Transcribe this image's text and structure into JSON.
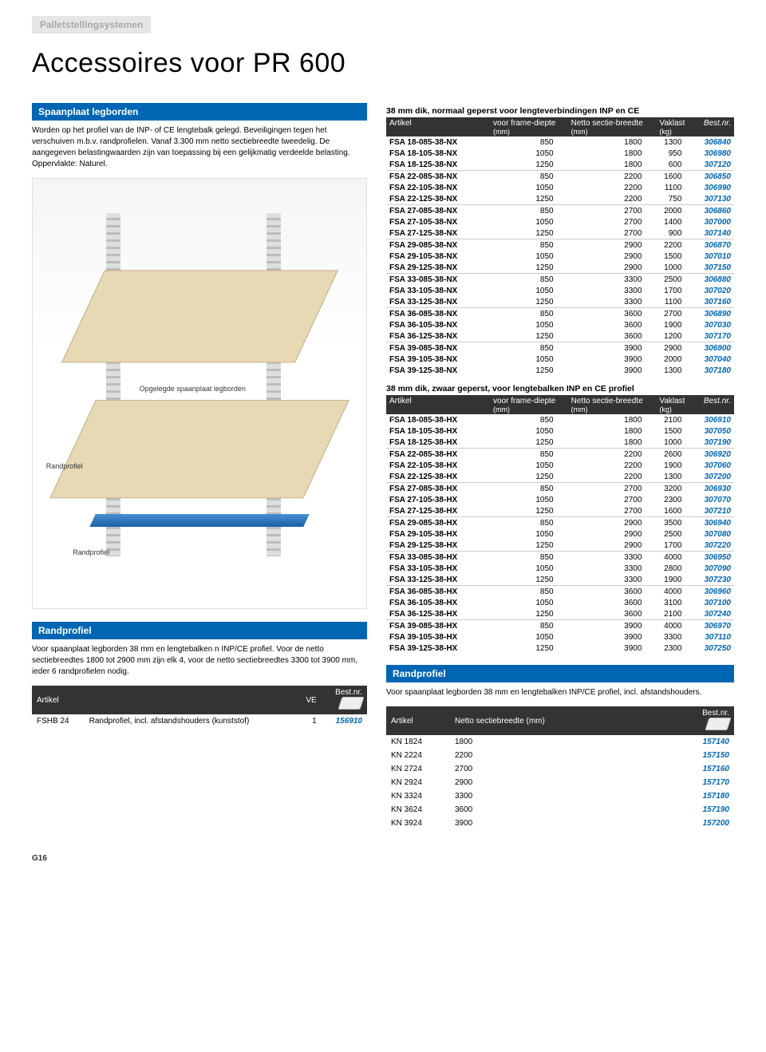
{
  "header": {
    "category": "Palletstellingsystemen",
    "title": "Accessoires voor PR 600"
  },
  "spaanplaat": {
    "heading": "Spaanplaat legborden",
    "description": "Worden op het profiel van de INP- of CE lengtebalk gelegd. Beveiligingen tegen het verschuiven m.b.v. randprofielen. Vanaf 3.300 mm netto sectiebreedte tweedelig. De aangegeven belastingwaarden zijn van toepassing bij een gelijkmatig verdeelde belasting. Oppervlakte: Naturel.",
    "labels": {
      "top": "Opgelegde spaanplaat legborden",
      "mid": "Randprofiel",
      "bot": "Randprofiel"
    }
  },
  "table1": {
    "title": "38 mm dik, normaal geperst voor lengteverbindingen INP en CE",
    "cols": [
      "Artikel",
      "voor frame-diepte (mm)",
      "Netto sectie-breedte (mm)",
      "Vaklast (kg)",
      "Best.nr."
    ],
    "groups": [
      [
        [
          "FSA 18-085-38-NX",
          "850",
          "1800",
          "1300",
          "306840"
        ],
        [
          "FSA 18-105-38-NX",
          "1050",
          "1800",
          "950",
          "306980"
        ],
        [
          "FSA 18-125-38-NX",
          "1250",
          "1800",
          "600",
          "307120"
        ]
      ],
      [
        [
          "FSA 22-085-38-NX",
          "850",
          "2200",
          "1600",
          "306850"
        ],
        [
          "FSA 22-105-38-NX",
          "1050",
          "2200",
          "1100",
          "306990"
        ],
        [
          "FSA 22-125-38-NX",
          "1250",
          "2200",
          "750",
          "307130"
        ]
      ],
      [
        [
          "FSA 27-085-38-NX",
          "850",
          "2700",
          "2000",
          "306860"
        ],
        [
          "FSA 27-105-38-NX",
          "1050",
          "2700",
          "1400",
          "307000"
        ],
        [
          "FSA 27-125-38-NX",
          "1250",
          "2700",
          "900",
          "307140"
        ]
      ],
      [
        [
          "FSA 29-085-38-NX",
          "850",
          "2900",
          "2200",
          "306870"
        ],
        [
          "FSA 29-105-38-NX",
          "1050",
          "2900",
          "1500",
          "307010"
        ],
        [
          "FSA 29-125-38-NX",
          "1250",
          "2900",
          "1000",
          "307150"
        ]
      ],
      [
        [
          "FSA 33-085-38-NX",
          "850",
          "3300",
          "2500",
          "306880"
        ],
        [
          "FSA 33-105-38-NX",
          "1050",
          "3300",
          "1700",
          "307020"
        ],
        [
          "FSA 33-125-38-NX",
          "1250",
          "3300",
          "1100",
          "307160"
        ]
      ],
      [
        [
          "FSA 36-085-38-NX",
          "850",
          "3600",
          "2700",
          "306890"
        ],
        [
          "FSA 36-105-38-NX",
          "1050",
          "3600",
          "1900",
          "307030"
        ],
        [
          "FSA 36-125-38-NX",
          "1250",
          "3600",
          "1200",
          "307170"
        ]
      ],
      [
        [
          "FSA 39-085-38-NX",
          "850",
          "3900",
          "2900",
          "306900"
        ],
        [
          "FSA 39-105-38-NX",
          "1050",
          "3900",
          "2000",
          "307040"
        ],
        [
          "FSA 39-125-38-NX",
          "1250",
          "3900",
          "1300",
          "307180"
        ]
      ]
    ]
  },
  "table2": {
    "title": "38 mm dik, zwaar geperst, voor lengtebalken INP en CE profiel",
    "cols": [
      "Artikel",
      "voor frame-diepte (mm)",
      "Netto sectie-breedte (mm)",
      "Vaklast (kg)",
      "Best.nr."
    ],
    "groups": [
      [
        [
          "FSA 18-085-38-HX",
          "850",
          "1800",
          "2100",
          "306910"
        ],
        [
          "FSA 18-105-38-HX",
          "1050",
          "1800",
          "1500",
          "307050"
        ],
        [
          "FSA 18-125-38-HX",
          "1250",
          "1800",
          "1000",
          "307190"
        ]
      ],
      [
        [
          "FSA 22-085-38-HX",
          "850",
          "2200",
          "2600",
          "306920"
        ],
        [
          "FSA 22-105-38-HX",
          "1050",
          "2200",
          "1900",
          "307060"
        ],
        [
          "FSA 22-125-38-HX",
          "1250",
          "2200",
          "1300",
          "307200"
        ]
      ],
      [
        [
          "FSA 27-085-38-HX",
          "850",
          "2700",
          "3200",
          "306930"
        ],
        [
          "FSA 27-105-38-HX",
          "1050",
          "2700",
          "2300",
          "307070"
        ],
        [
          "FSA 27-125-38-HX",
          "1250",
          "2700",
          "1600",
          "307210"
        ]
      ],
      [
        [
          "FSA 29-085-38-HX",
          "850",
          "2900",
          "3500",
          "306940"
        ],
        [
          "FSA 29-105-38-HX",
          "1050",
          "2900",
          "2500",
          "307080"
        ],
        [
          "FSA 29-125-38-HX",
          "1250",
          "2900",
          "1700",
          "307220"
        ]
      ],
      [
        [
          "FSA 33-085-38-HX",
          "850",
          "3300",
          "4000",
          "306950"
        ],
        [
          "FSA 33-105-38-HX",
          "1050",
          "3300",
          "2800",
          "307090"
        ],
        [
          "FSA 33-125-38-HX",
          "1250",
          "3300",
          "1900",
          "307230"
        ]
      ],
      [
        [
          "FSA 36-085-38-HX",
          "850",
          "3600",
          "4000",
          "306960"
        ],
        [
          "FSA 36-105-38-HX",
          "1050",
          "3600",
          "3100",
          "307100"
        ],
        [
          "FSA 36-125-38-HX",
          "1250",
          "3600",
          "2100",
          "307240"
        ]
      ],
      [
        [
          "FSA 39-085-38-HX",
          "850",
          "3900",
          "4000",
          "306970"
        ],
        [
          "FSA 39-105-38-HX",
          "1050",
          "3900",
          "3300",
          "307110"
        ],
        [
          "FSA 39-125-38-HX",
          "1250",
          "3900",
          "2300",
          "307250"
        ]
      ]
    ]
  },
  "rand_left": {
    "heading": "Randprofiel",
    "desc": "Voor spaanplaat legborden 38 mm en lengtebalken n INP/CE profiel. Voor de netto sectiebreedtes 1800 tot 2900 mm zijn elk 4, voor de netto sectiebreedtes 3300 tot 3900 mm, ieder 6 randprofielen nodig.",
    "cols": [
      "Artikel",
      "",
      "VE",
      "Best.nr."
    ],
    "rows": [
      [
        "FSHB 24",
        "Randprofiel, incl. afstandshouders (kunststof)",
        "1",
        "156910"
      ]
    ]
  },
  "rand_right": {
    "heading": "Randprofiel",
    "desc": "Voor spaanplaat legborden 38 mm en lengtebalken INP/CE profiel, incl. afstandshouders.",
    "cols": [
      "Artikel",
      "Netto sectiebreedte (mm)",
      "Best.nr."
    ],
    "rows": [
      [
        "KN 1824",
        "1800",
        "157140"
      ],
      [
        "KN 2224",
        "2200",
        "157150"
      ],
      [
        "KN 2724",
        "2700",
        "157160"
      ],
      [
        "KN 2924",
        "2900",
        "157170"
      ],
      [
        "KN 3324",
        "3300",
        "157180"
      ],
      [
        "KN 3624",
        "3600",
        "157190"
      ],
      [
        "KN 3924",
        "3900",
        "157200"
      ]
    ]
  },
  "footer": {
    "pagenum": "G16"
  },
  "style": {
    "colors": {
      "header_blue": "#0066b3",
      "header_dark": "#333333",
      "bestnr": "#0066b3",
      "tab_grey": "#a8a8a8"
    },
    "fonts": {
      "base_pt": 10,
      "title_pt": 34
    }
  }
}
